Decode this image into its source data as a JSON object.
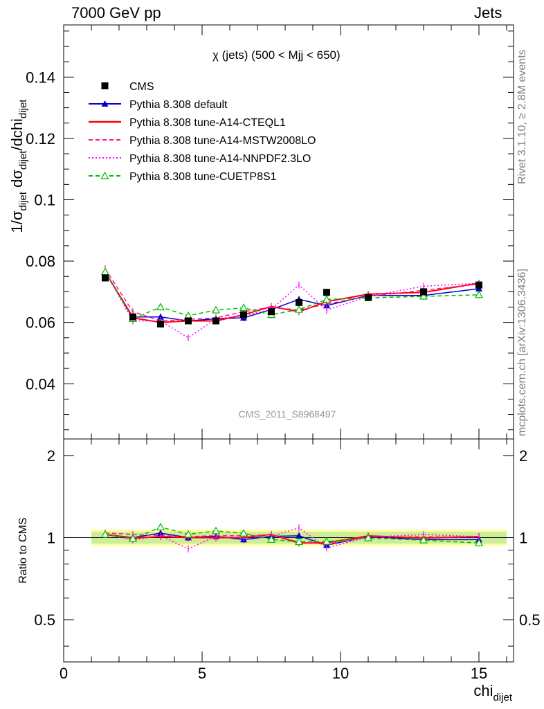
{
  "header": {
    "left": "7000 GeV pp",
    "right": "Jets"
  },
  "side_labels": {
    "rivet": "Rivet 3.1.10, ≥ 2.8M events",
    "mcplots": "mcplots.cern.ch [arXiv:1306.3436]"
  },
  "chart_data": {
    "type": "line",
    "title": "χ (jets) (500 < Mjj <  650)",
    "analysis_tag": "CMS_2011_S8968497",
    "xlabel": "chi_dijet",
    "ylabel": "1/σ_dijet dσ_dijet/dchi_dijet",
    "ratio_ylabel": "Ratio to CMS",
    "xlim": [
      0,
      16.25
    ],
    "ylim": [
      0.022,
      0.157
    ],
    "ratio_ylim": [
      0.35,
      2.3
    ],
    "x_ticks": [
      0,
      5,
      10,
      15
    ],
    "y_ticks": [
      0.04,
      0.06,
      0.08,
      0.1,
      0.12,
      0.14
    ],
    "ratio_ticks": [
      0.5,
      1,
      2
    ],
    "ratio_band": [
      0.95,
      1.05
    ],
    "legend_position": "top-left",
    "x": [
      1.5,
      2.5,
      3.5,
      4.5,
      5.5,
      6.5,
      7.5,
      8.5,
      9.5,
      11,
      13,
      15
    ],
    "data": {
      "name": "CMS",
      "color": "#000000",
      "values": [
        0.0745,
        0.0618,
        0.0595,
        0.0605,
        0.0605,
        0.0625,
        0.0635,
        0.0665,
        0.0698,
        0.0682,
        0.07,
        0.0722
      ]
    },
    "series": [
      {
        "name": "Pythia 8.308 default",
        "color": "#0000cc",
        "style": "solid",
        "marker": "triangle-filled",
        "values": [
          0.0765,
          0.0618,
          0.0618,
          0.0605,
          0.0612,
          0.0615,
          0.0642,
          0.0675,
          0.0655,
          0.0688,
          0.0688,
          0.071
        ]
      },
      {
        "name": "Pythia 8.308 tune-A14-CTEQL1",
        "color": "#ff0000",
        "style": "solid",
        "marker": "none",
        "values": [
          0.0765,
          0.0615,
          0.06,
          0.0605,
          0.0605,
          0.0625,
          0.0652,
          0.0635,
          0.0668,
          0.0692,
          0.0698,
          0.0728
        ]
      },
      {
        "name": "Pythia 8.308 tune-A14-MSTW2008LO",
        "color": "#ff1493",
        "style": "dashed",
        "marker": "none",
        "values": [
          0.0775,
          0.0635,
          0.0605,
          0.061,
          0.0615,
          0.0635,
          0.065,
          0.064,
          0.066,
          0.0685,
          0.0705,
          0.0725
        ]
      },
      {
        "name": "Pythia 8.308 tune-A14-NNPDF2.3LO",
        "color": "#ff00ff",
        "style": "dotted",
        "marker": "none",
        "values": [
          0.0765,
          0.0605,
          0.0605,
          0.055,
          0.0612,
          0.0622,
          0.0642,
          0.0722,
          0.064,
          0.0685,
          0.0718,
          0.0728
        ]
      },
      {
        "name": "Pythia 8.308 tune-CUETP8S1",
        "color": "#00bb00",
        "style": "dashed",
        "marker": "triangle-open",
        "values": [
          0.0765,
          0.0612,
          0.065,
          0.0622,
          0.064,
          0.0648,
          0.0625,
          0.0642,
          0.0675,
          0.068,
          0.0685,
          0.069
        ]
      }
    ]
  }
}
